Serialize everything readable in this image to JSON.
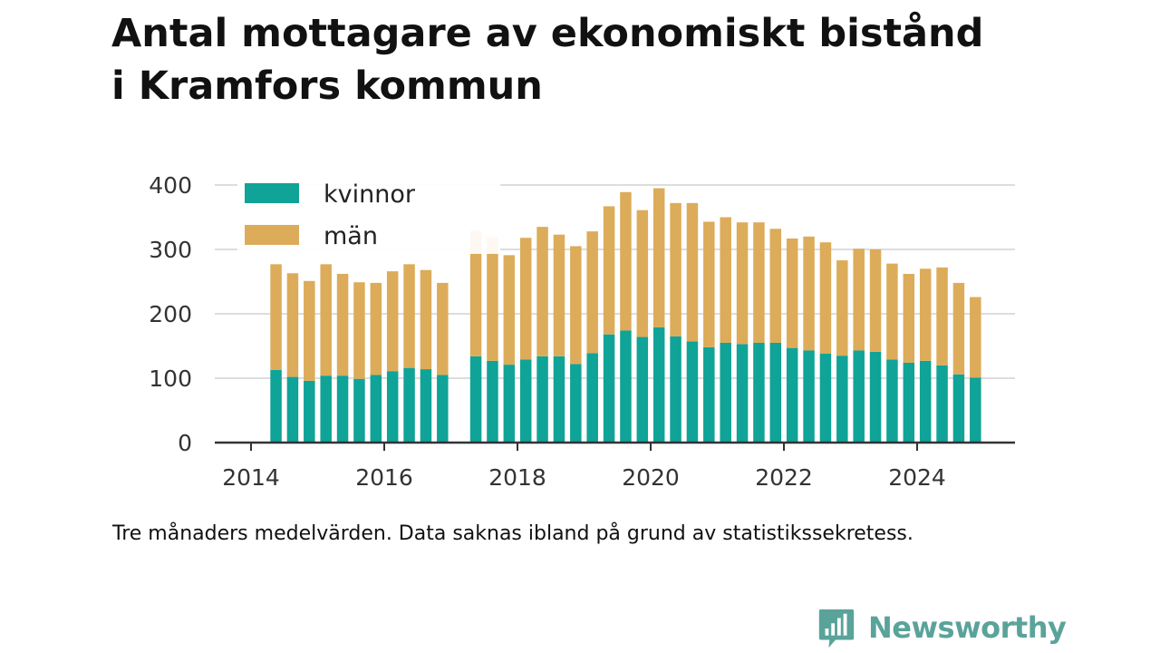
{
  "title_line1": "Antal mottagare av ekonomiskt bistånd",
  "title_line2": "i Kramfors kommun",
  "caption": "Tre månaders medelvärden. Data saknas ibland på grund av statistikssekretess.",
  "brand": {
    "name": "Newsworthy",
    "icon": "newsworthy-logo-icon",
    "color": "#5aa39a"
  },
  "colors": {
    "kvinnor": "#10a398",
    "man": "#dcac5a",
    "grid": "#dddddd",
    "axis": "#333333"
  },
  "chart_data": {
    "type": "bar",
    "stacked": true,
    "title": "Antal mottagare av ekonomiskt bistånd i Kramfors kommun",
    "xlabel": "",
    "ylabel": "",
    "ylim": [
      0,
      400
    ],
    "xlim": [
      2013.6,
      2025.6
    ],
    "yticks": [
      "0",
      "100",
      "200",
      "300",
      "400"
    ],
    "xticks": [
      "2014",
      "2016",
      "2018",
      "2020",
      "2022",
      "2024"
    ],
    "legend": {
      "placement": "top-left",
      "entries": [
        "kvinnor",
        "män"
      ]
    },
    "grid": true,
    "x": [
      "2014-05",
      "2014-08",
      "2014-11",
      "2015-02",
      "2015-05",
      "2015-08",
      "2015-11",
      "2016-02",
      "2016-05",
      "2016-08",
      "2016-11",
      "2017-05",
      "2017-08",
      "2017-11",
      "2018-02",
      "2018-05",
      "2018-08",
      "2018-11",
      "2019-02",
      "2019-05",
      "2019-08",
      "2019-11",
      "2020-02",
      "2020-05",
      "2020-08",
      "2020-11",
      "2021-02",
      "2021-05",
      "2021-08",
      "2021-11",
      "2022-02",
      "2022-05",
      "2022-08",
      "2022-11",
      "2023-02",
      "2023-05",
      "2023-08",
      "2023-11",
      "2024-02",
      "2024-05",
      "2024-08",
      "2024-11"
    ],
    "series": [
      {
        "name": "kvinnor",
        "values": [
          113,
          102,
          96,
          104,
          104,
          99,
          105,
          111,
          116,
          114,
          105,
          134,
          127,
          121,
          129,
          134,
          134,
          122,
          139,
          168,
          174,
          164,
          179,
          165,
          157,
          148,
          155,
          153,
          155,
          155,
          147,
          143,
          138,
          135,
          143,
          141,
          129,
          124,
          127,
          120,
          106,
          101
        ]
      },
      {
        "name": "män",
        "values": [
          164,
          161,
          155,
          173,
          158,
          150,
          143,
          155,
          161,
          154,
          143,
          195,
          192,
          170,
          189,
          201,
          189,
          183,
          189,
          199,
          215,
          197,
          216,
          207,
          215,
          195,
          195,
          189,
          187,
          177,
          170,
          177,
          173,
          148,
          158,
          159,
          149,
          138,
          143,
          152,
          142,
          125
        ]
      }
    ]
  }
}
